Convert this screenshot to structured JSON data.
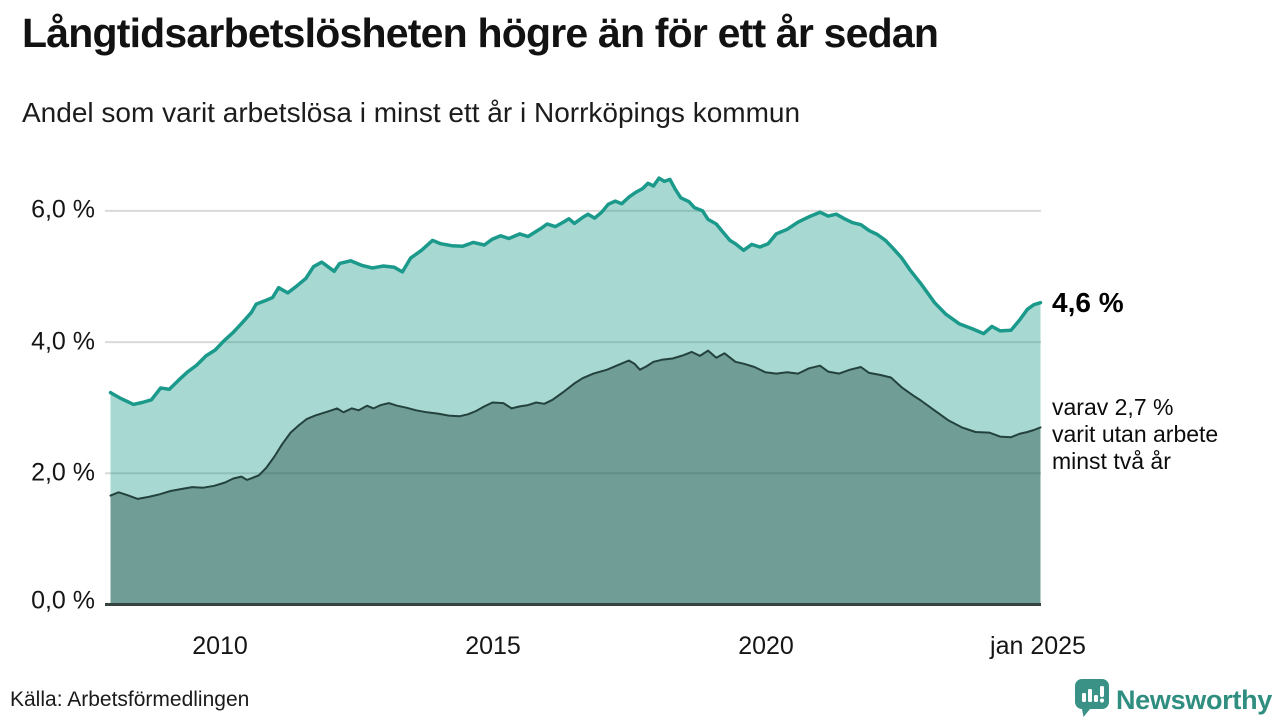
{
  "header": {
    "title": "Långtidsarbetslösheten högre än för ett år sedan",
    "subtitle": "Andel som varit arbetslösa i minst ett år i Norrköpings kommun"
  },
  "annotations": {
    "latest_total": "4,6 %",
    "latest_two_year": "varav 2,7 %\nvarit utan arbete\nminst två år"
  },
  "footer": {
    "source": "Källa: Arbetsförmedlingen",
    "brand": "Newsworthy"
  },
  "colors": {
    "accent_teal": "#1b9a8c",
    "dark_line": "#24423d",
    "axis_line": "#36443f",
    "gridline": "#d9d9d9",
    "brand_teal": "#2f8e7f"
  },
  "chart_data": {
    "type": "area",
    "title": "Långtidsarbetslösheten högre än för ett år sedan",
    "subtitle": "Andel som varit arbetslösa i minst ett år i Norrköpings kommun",
    "unit": "%",
    "grid": "horizontal-only",
    "x_axis": {
      "range": [
        2007.9,
        2025.05
      ],
      "ticks": [
        {
          "x": 2010,
          "label": "2010"
        },
        {
          "x": 2015,
          "label": "2015"
        },
        {
          "x": 2020,
          "label": "2020"
        },
        {
          "x": 2025,
          "label": "jan 2025"
        }
      ]
    },
    "y_axis": {
      "range": [
        0,
        6.73
      ],
      "gridlines": [
        2,
        4,
        6
      ],
      "ticks": [
        {
          "v": 0,
          "label": "0,0 %"
        },
        {
          "v": 2,
          "label": "2,0 %"
        },
        {
          "v": 4,
          "label": "4,0 %"
        },
        {
          "v": 6,
          "label": "6,0 %"
        }
      ]
    },
    "series": [
      {
        "name": "Arbetslösa minst ett år",
        "latest_value": 4.6,
        "latest_label": "4,6 %",
        "line_color": "#1b9a8c",
        "line_width": 3.5,
        "fill_color": "rgba(26,153,138,0.38)",
        "points": [
          [
            2008.0,
            3.23
          ],
          [
            2008.17,
            3.15
          ],
          [
            2008.42,
            3.05
          ],
          [
            2008.58,
            3.08
          ],
          [
            2008.75,
            3.12
          ],
          [
            2008.92,
            3.3
          ],
          [
            2009.08,
            3.28
          ],
          [
            2009.25,
            3.42
          ],
          [
            2009.42,
            3.55
          ],
          [
            2009.58,
            3.65
          ],
          [
            2009.75,
            3.79
          ],
          [
            2009.92,
            3.88
          ],
          [
            2010.08,
            4.02
          ],
          [
            2010.25,
            4.15
          ],
          [
            2010.42,
            4.3
          ],
          [
            2010.58,
            4.45
          ],
          [
            2010.67,
            4.58
          ],
          [
            2010.83,
            4.63
          ],
          [
            2010.97,
            4.68
          ],
          [
            2011.08,
            4.83
          ],
          [
            2011.25,
            4.75
          ],
          [
            2011.42,
            4.86
          ],
          [
            2011.58,
            4.97
          ],
          [
            2011.72,
            5.15
          ],
          [
            2011.87,
            5.22
          ],
          [
            2012.0,
            5.14
          ],
          [
            2012.1,
            5.08
          ],
          [
            2012.2,
            5.2
          ],
          [
            2012.4,
            5.24
          ],
          [
            2012.6,
            5.17
          ],
          [
            2012.8,
            5.13
          ],
          [
            2013.0,
            5.16
          ],
          [
            2013.2,
            5.14
          ],
          [
            2013.35,
            5.07
          ],
          [
            2013.5,
            5.28
          ],
          [
            2013.7,
            5.4
          ],
          [
            2013.9,
            5.55
          ],
          [
            2014.05,
            5.5
          ],
          [
            2014.25,
            5.47
          ],
          [
            2014.45,
            5.46
          ],
          [
            2014.65,
            5.52
          ],
          [
            2014.85,
            5.48
          ],
          [
            2015.0,
            5.57
          ],
          [
            2015.15,
            5.62
          ],
          [
            2015.3,
            5.58
          ],
          [
            2015.5,
            5.65
          ],
          [
            2015.65,
            5.61
          ],
          [
            2015.9,
            5.74
          ],
          [
            2016.0,
            5.8
          ],
          [
            2016.15,
            5.76
          ],
          [
            2016.3,
            5.83
          ],
          [
            2016.4,
            5.88
          ],
          [
            2016.5,
            5.81
          ],
          [
            2016.65,
            5.9
          ],
          [
            2016.75,
            5.95
          ],
          [
            2016.87,
            5.89
          ],
          [
            2017.0,
            5.98
          ],
          [
            2017.12,
            6.1
          ],
          [
            2017.25,
            6.15
          ],
          [
            2017.37,
            6.11
          ],
          [
            2017.5,
            6.21
          ],
          [
            2017.62,
            6.28
          ],
          [
            2017.75,
            6.34
          ],
          [
            2017.85,
            6.42
          ],
          [
            2017.95,
            6.38
          ],
          [
            2018.05,
            6.5
          ],
          [
            2018.15,
            6.45
          ],
          [
            2018.25,
            6.48
          ],
          [
            2018.35,
            6.33
          ],
          [
            2018.45,
            6.2
          ],
          [
            2018.6,
            6.14
          ],
          [
            2018.7,
            6.05
          ],
          [
            2018.85,
            6.0
          ],
          [
            2018.95,
            5.87
          ],
          [
            2019.1,
            5.8
          ],
          [
            2019.2,
            5.7
          ],
          [
            2019.35,
            5.55
          ],
          [
            2019.45,
            5.5
          ],
          [
            2019.6,
            5.4
          ],
          [
            2019.75,
            5.49
          ],
          [
            2019.9,
            5.45
          ],
          [
            2020.05,
            5.5
          ],
          [
            2020.2,
            5.65
          ],
          [
            2020.4,
            5.72
          ],
          [
            2020.6,
            5.83
          ],
          [
            2020.8,
            5.91
          ],
          [
            2021.0,
            5.98
          ],
          [
            2021.15,
            5.92
          ],
          [
            2021.3,
            5.95
          ],
          [
            2021.45,
            5.88
          ],
          [
            2021.6,
            5.82
          ],
          [
            2021.75,
            5.79
          ],
          [
            2021.9,
            5.7
          ],
          [
            2022.05,
            5.64
          ],
          [
            2022.2,
            5.55
          ],
          [
            2022.35,
            5.42
          ],
          [
            2022.5,
            5.28
          ],
          [
            2022.65,
            5.1
          ],
          [
            2022.85,
            4.89
          ],
          [
            2023.1,
            4.6
          ],
          [
            2023.3,
            4.43
          ],
          [
            2023.55,
            4.28
          ],
          [
            2023.8,
            4.2
          ],
          [
            2024.0,
            4.13
          ],
          [
            2024.15,
            4.24
          ],
          [
            2024.3,
            4.17
          ],
          [
            2024.5,
            4.18
          ],
          [
            2024.65,
            4.33
          ],
          [
            2024.8,
            4.5
          ],
          [
            2024.92,
            4.57
          ],
          [
            2025.04,
            4.6
          ]
        ]
      },
      {
        "name": "varav utan arbete minst två år",
        "latest_value": 2.7,
        "latest_label": "2,7 %",
        "line_color": "#24423d",
        "line_width": 2,
        "fill_color": "rgba(13,56,48,0.36)",
        "points": [
          [
            2008.0,
            1.66
          ],
          [
            2008.15,
            1.71
          ],
          [
            2008.3,
            1.67
          ],
          [
            2008.5,
            1.61
          ],
          [
            2008.7,
            1.64
          ],
          [
            2008.9,
            1.68
          ],
          [
            2009.1,
            1.73
          ],
          [
            2009.3,
            1.76
          ],
          [
            2009.5,
            1.79
          ],
          [
            2009.7,
            1.78
          ],
          [
            2009.9,
            1.81
          ],
          [
            2010.1,
            1.86
          ],
          [
            2010.25,
            1.92
          ],
          [
            2010.4,
            1.95
          ],
          [
            2010.5,
            1.9
          ],
          [
            2010.6,
            1.93
          ],
          [
            2010.72,
            1.97
          ],
          [
            2010.85,
            2.08
          ],
          [
            2011.0,
            2.25
          ],
          [
            2011.15,
            2.45
          ],
          [
            2011.3,
            2.62
          ],
          [
            2011.45,
            2.73
          ],
          [
            2011.6,
            2.83
          ],
          [
            2011.75,
            2.88
          ],
          [
            2011.9,
            2.92
          ],
          [
            2012.05,
            2.96
          ],
          [
            2012.15,
            2.99
          ],
          [
            2012.27,
            2.93
          ],
          [
            2012.42,
            2.99
          ],
          [
            2012.55,
            2.96
          ],
          [
            2012.7,
            3.03
          ],
          [
            2012.82,
            2.99
          ],
          [
            2012.95,
            3.04
          ],
          [
            2013.1,
            3.07
          ],
          [
            2013.25,
            3.03
          ],
          [
            2013.42,
            3.0
          ],
          [
            2013.6,
            2.96
          ],
          [
            2013.8,
            2.93
          ],
          [
            2014.0,
            2.91
          ],
          [
            2014.2,
            2.88
          ],
          [
            2014.4,
            2.87
          ],
          [
            2014.55,
            2.9
          ],
          [
            2014.7,
            2.95
          ],
          [
            2014.85,
            3.02
          ],
          [
            2015.0,
            3.08
          ],
          [
            2015.2,
            3.07
          ],
          [
            2015.35,
            2.99
          ],
          [
            2015.5,
            3.02
          ],
          [
            2015.65,
            3.04
          ],
          [
            2015.8,
            3.08
          ],
          [
            2015.95,
            3.06
          ],
          [
            2016.1,
            3.12
          ],
          [
            2016.3,
            3.24
          ],
          [
            2016.5,
            3.37
          ],
          [
            2016.65,
            3.45
          ],
          [
            2016.85,
            3.52
          ],
          [
            2017.1,
            3.58
          ],
          [
            2017.3,
            3.65
          ],
          [
            2017.5,
            3.72
          ],
          [
            2017.6,
            3.67
          ],
          [
            2017.7,
            3.58
          ],
          [
            2017.82,
            3.63
          ],
          [
            2017.95,
            3.7
          ],
          [
            2018.1,
            3.73
          ],
          [
            2018.3,
            3.75
          ],
          [
            2018.5,
            3.8
          ],
          [
            2018.65,
            3.85
          ],
          [
            2018.8,
            3.79
          ],
          [
            2018.95,
            3.87
          ],
          [
            2019.1,
            3.76
          ],
          [
            2019.25,
            3.83
          ],
          [
            2019.45,
            3.7
          ],
          [
            2019.6,
            3.67
          ],
          [
            2019.8,
            3.62
          ],
          [
            2020.0,
            3.54
          ],
          [
            2020.2,
            3.52
          ],
          [
            2020.4,
            3.54
          ],
          [
            2020.6,
            3.52
          ],
          [
            2020.8,
            3.6
          ],
          [
            2021.0,
            3.64
          ],
          [
            2021.15,
            3.55
          ],
          [
            2021.35,
            3.52
          ],
          [
            2021.55,
            3.58
          ],
          [
            2021.75,
            3.62
          ],
          [
            2021.9,
            3.53
          ],
          [
            2022.1,
            3.5
          ],
          [
            2022.3,
            3.46
          ],
          [
            2022.5,
            3.31
          ],
          [
            2022.7,
            3.19
          ],
          [
            2022.85,
            3.11
          ],
          [
            2023.05,
            2.99
          ],
          [
            2023.35,
            2.81
          ],
          [
            2023.6,
            2.7
          ],
          [
            2023.85,
            2.63
          ],
          [
            2024.1,
            2.62
          ],
          [
            2024.3,
            2.56
          ],
          [
            2024.5,
            2.55
          ],
          [
            2024.65,
            2.6
          ],
          [
            2024.8,
            2.63
          ],
          [
            2024.92,
            2.66
          ],
          [
            2025.04,
            2.7
          ]
        ]
      }
    ]
  }
}
